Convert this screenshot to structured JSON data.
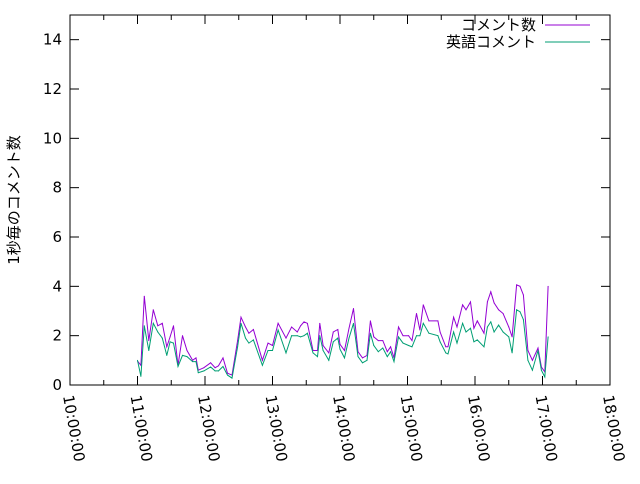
{
  "chart_data": {
    "type": "line",
    "title": "",
    "xlabel": "",
    "ylabel": "1秒毎のコメント数",
    "xlim": [
      "10:00:00",
      "18:00:00"
    ],
    "ylim": [
      0,
      15
    ],
    "x_ticks": [
      "10:00:00",
      "11:00:00",
      "12:00:00",
      "13:00:00",
      "14:00:00",
      "15:00:00",
      "16:00:00",
      "17:00:00",
      "18:00:00"
    ],
    "y_ticks": [
      "0",
      "2",
      "4",
      "6",
      "8",
      "10",
      "12",
      "14"
    ],
    "grid": false,
    "legend_position": "top-right",
    "x": [
      "11:00",
      "11:03",
      "11:06",
      "11:10",
      "11:14",
      "11:18",
      "11:22",
      "11:26",
      "11:29",
      "11:32",
      "11:36",
      "11:40",
      "11:44",
      "11:49",
      "11:52",
      "11:54",
      "11:59",
      "12:05",
      "12:09",
      "12:12",
      "12:16",
      "12:20",
      "12:24",
      "12:29",
      "12:32",
      "12:36",
      "12:39",
      "12:43",
      "12:51",
      "12:56",
      "13:00",
      "13:05",
      "13:12",
      "13:17",
      "13:22",
      "13:25",
      "13:28",
      "13:31",
      "13:36",
      "13:40",
      "13:42",
      "13:45",
      "13:50",
      "13:54",
      "13:58",
      "14:00",
      "14:04",
      "14:08",
      "14:12",
      "14:16",
      "14:20",
      "14:24",
      "14:27",
      "14:30",
      "14:34",
      "14:38",
      "14:42",
      "14:45",
      "14:48",
      "14:52",
      "14:56",
      "15:01",
      "15:04",
      "15:08",
      "15:11",
      "15:14",
      "15:19",
      "15:27",
      "15:29",
      "15:34",
      "15:36",
      "15:41",
      "15:44",
      "15:49",
      "15:52",
      "15:56",
      "15:59",
      "16:02",
      "16:08",
      "16:11",
      "16:14",
      "16:17",
      "16:21",
      "16:25",
      "16:30",
      "16:33",
      "16:37",
      "16:40",
      "16:43",
      "16:47",
      "16:51",
      "16:56",
      "16:59",
      "17:02",
      "17:05"
    ],
    "series": [
      {
        "name": "コメント数",
        "color": "#9400d3",
        "values": [
          0.97,
          0.8,
          3.6,
          1.8,
          3.05,
          2.4,
          2.5,
          1.55,
          1.95,
          2.4,
          0.8,
          2.0,
          1.4,
          1.0,
          1.1,
          0.6,
          0.7,
          0.9,
          0.7,
          0.78,
          1.1,
          0.48,
          0.4,
          1.8,
          2.75,
          2.35,
          2.1,
          2.25,
          1.0,
          1.7,
          1.6,
          2.5,
          1.9,
          2.35,
          2.15,
          2.4,
          2.56,
          2.5,
          1.4,
          1.4,
          2.5,
          1.6,
          1.3,
          2.15,
          2.25,
          1.65,
          1.4,
          2.3,
          3.1,
          1.35,
          1.1,
          1.2,
          2.6,
          1.95,
          1.8,
          1.8,
          1.35,
          1.55,
          1.1,
          2.35,
          2.0,
          2.0,
          1.8,
          2.9,
          2.23,
          3.25,
          2.6,
          2.6,
          2.15,
          1.55,
          1.55,
          2.75,
          2.35,
          3.25,
          3.05,
          3.37,
          2.3,
          2.6,
          2.1,
          3.37,
          3.78,
          3.33,
          3.05,
          2.9,
          2.35,
          1.95,
          4.06,
          4.0,
          3.65,
          1.4,
          1.0,
          1.5,
          0.73,
          0.53,
          4.0
        ]
      },
      {
        "name": "英語コメント",
        "color": "#009e73",
        "values": [
          1.0,
          0.35,
          2.4,
          1.4,
          2.5,
          2.15,
          1.9,
          1.2,
          1.75,
          1.7,
          0.75,
          1.2,
          1.15,
          0.95,
          0.95,
          0.5,
          0.57,
          0.73,
          0.57,
          0.57,
          0.75,
          0.4,
          0.28,
          1.55,
          2.5,
          1.9,
          1.7,
          1.83,
          0.8,
          1.4,
          1.4,
          2.23,
          1.3,
          2.0,
          2.0,
          1.95,
          2.0,
          2.1,
          1.3,
          1.15,
          2.0,
          1.4,
          1.0,
          1.75,
          1.9,
          1.45,
          1.1,
          1.9,
          2.5,
          1.15,
          0.9,
          1.0,
          2.1,
          1.6,
          1.35,
          1.5,
          1.15,
          1.35,
          0.95,
          1.95,
          1.7,
          1.6,
          1.55,
          2.0,
          2.0,
          2.5,
          2.1,
          2.0,
          1.75,
          1.3,
          1.26,
          2.15,
          1.7,
          2.5,
          2.15,
          2.3,
          1.75,
          1.83,
          1.55,
          2.35,
          2.56,
          2.15,
          2.43,
          2.15,
          1.95,
          1.3,
          3.05,
          2.97,
          2.65,
          1.0,
          0.6,
          1.4,
          0.6,
          0.33,
          1.95
        ]
      }
    ]
  }
}
